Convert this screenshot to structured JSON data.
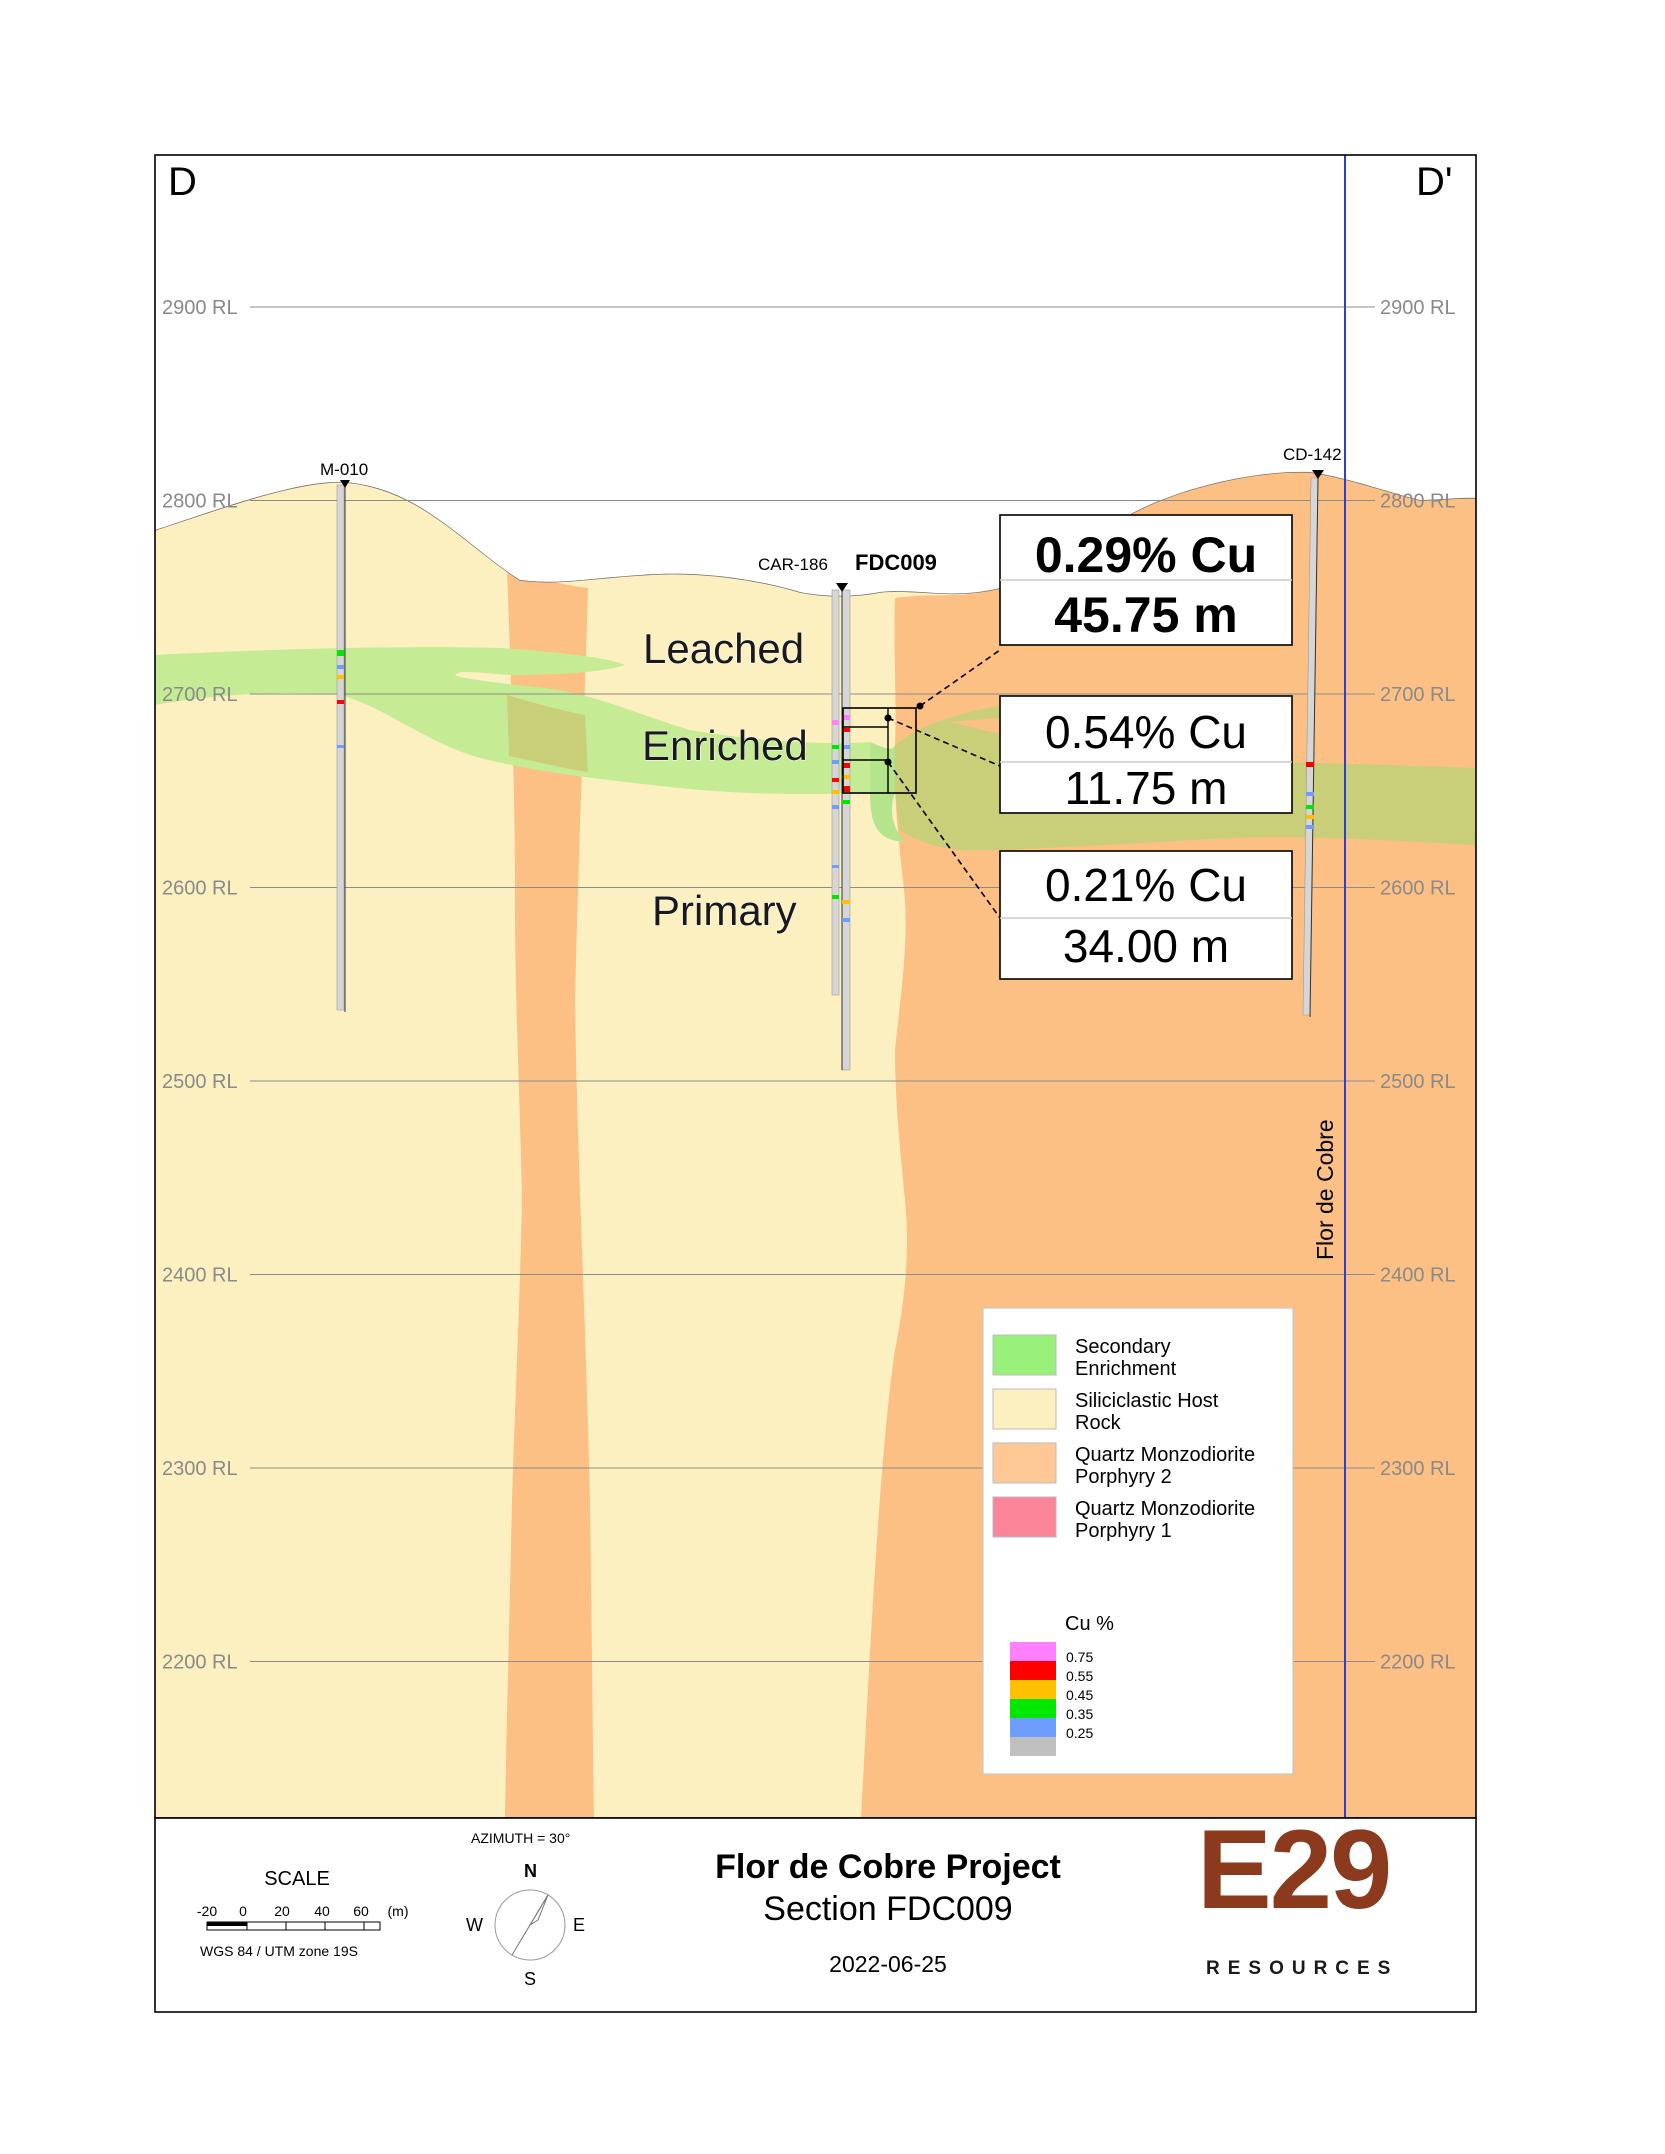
{
  "section_labels": {
    "left": "D",
    "right": "D'"
  },
  "rl_labels": [
    "2900 RL",
    "2800 RL",
    "2700 RL",
    "2600 RL",
    "2500 RL",
    "2400 RL",
    "2300 RL",
    "2200 RL"
  ],
  "drillholes": {
    "m010": "M-010",
    "car186": "CAR-186",
    "fdc009": "FDC009",
    "cd142": "CD-142"
  },
  "zones": {
    "leached": "Leached",
    "enriched": "Enriched",
    "primary": "Primary"
  },
  "intercepts": [
    {
      "grade": "0.29% Cu",
      "length": "45.75 m"
    },
    {
      "grade": "0.54% Cu",
      "length": "11.75 m"
    },
    {
      "grade": "0.21% Cu",
      "length": "34.00 m"
    }
  ],
  "fault_label": "Flor de Cobre",
  "legend": {
    "units": [
      {
        "line1": "Secondary",
        "line2": "Enrichment",
        "color": "#98f07a"
      },
      {
        "line1": "Siliciclastic Host",
        "line2": "Rock",
        "color": "#fdf0c0"
      },
      {
        "line1": "Quartz Monzodiorite",
        "line2": "Porphyry 2",
        "color": "#fdc896"
      },
      {
        "line1": "Quartz Monzodiorite",
        "line2": "Porphyry 1",
        "color": "#fb8598"
      }
    ],
    "cu_title": "Cu %",
    "cu_scale": [
      {
        "value": "0.75",
        "color": "#ff80ff"
      },
      {
        "value": "0.55",
        "color": "#ff0000"
      },
      {
        "value": "0.45",
        "color": "#ffc000"
      },
      {
        "value": "0.35",
        "color": "#00e800"
      },
      {
        "value": "0.25",
        "color": "#6d9eff"
      },
      {
        "value": "",
        "color": "#c0c0c0"
      }
    ]
  },
  "footer": {
    "scale_title": "SCALE",
    "scale_ticks": [
      "-20",
      "0",
      "20",
      "40",
      "60",
      "(m)"
    ],
    "projection": "WGS 84 / UTM zone 19S",
    "azimuth": "AZIMUTH = 30°",
    "compass": {
      "n": "N",
      "s": "S",
      "e": "E",
      "w": "W"
    },
    "title": "Flor de Cobre Project",
    "subtitle": "Section FDC009",
    "date": "2022-06-25",
    "logo_main": "E29",
    "logo_sub": "RESOURCES"
  },
  "colors": {
    "host": "#fdf0c0",
    "porphyry2": "#fcbf84",
    "enrichment_a": "#b8e48a",
    "enrichment_b": "#c8cf6e",
    "brand": "#8b3a1d",
    "fault": "#2f3ecf"
  }
}
